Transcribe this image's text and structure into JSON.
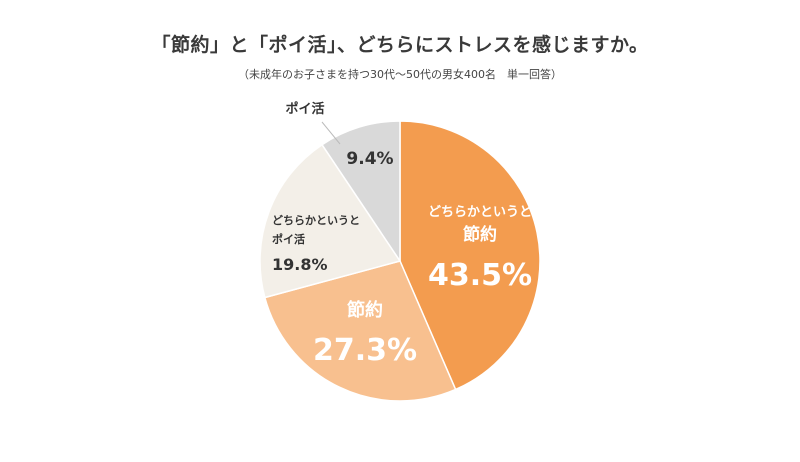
{
  "title": "「節約」と「ポイ活」、どちらにストレスを感じますか。",
  "subtitle": "（未成年のお子さまを持つ30代〜50代の男女400名　単一回答）",
  "chart_data": {
    "type": "pie",
    "title": "「節約」と「ポイ活」、どちらにストレスを感じますか。",
    "subtitle": "（未成年のお子さまを持つ30代〜50代の男女400名　単一回答）",
    "start": "12 o'clock",
    "direction": "clockwise",
    "slices": [
      {
        "label_lines": [
          "どちらかというと",
          "節約"
        ],
        "value": 43.5,
        "value_label": "43.5%",
        "color": "#f39c4f",
        "text_color": "#ffffff"
      },
      {
        "label_lines": [
          "節約"
        ],
        "value": 27.3,
        "value_label": "27.3%",
        "color": "#f8c08f",
        "text_color": "#ffffff"
      },
      {
        "label_lines": [
          "どちらかというと",
          "ポイ活"
        ],
        "value": 19.8,
        "value_label": "19.8%",
        "color": "#f3efe8",
        "text_color": "#333333"
      },
      {
        "label_lines": [
          "ポイ活"
        ],
        "value": 9.4,
        "value_label": "9.4%",
        "color": "#d9d9d9",
        "text_color": "#333333"
      }
    ]
  }
}
